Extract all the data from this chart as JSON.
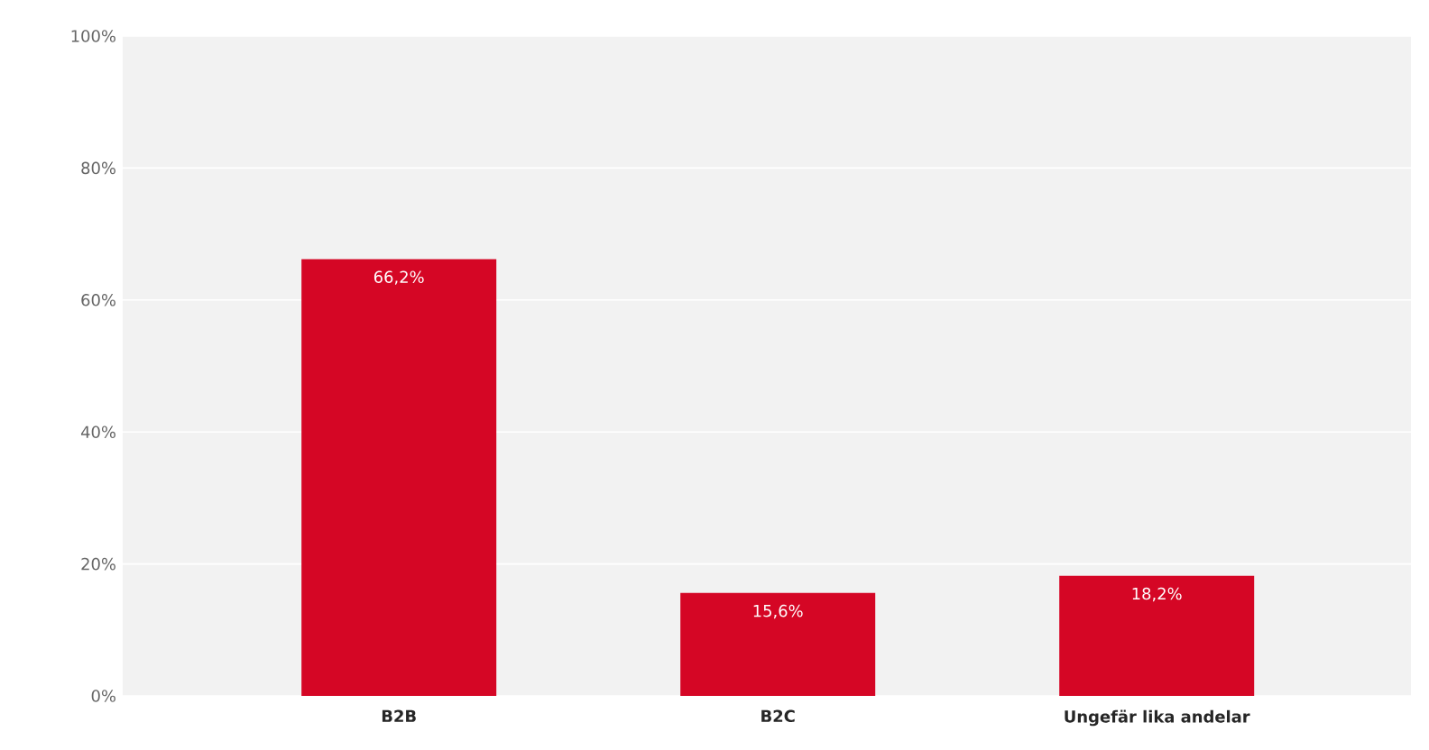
{
  "chart_data": {
    "type": "bar",
    "categories": [
      "B2B",
      "B2C",
      "Ungefär lika andelar"
    ],
    "values": [
      66.2,
      15.6,
      18.2
    ],
    "value_labels": [
      "66,2%",
      "15,6%",
      "18,2%"
    ],
    "color": "#d50625",
    "ylim": [
      0,
      100
    ],
    "yticks": [
      {
        "value": 0,
        "label": "0%"
      },
      {
        "value": 20,
        "label": "20%"
      },
      {
        "value": 40,
        "label": "40%"
      },
      {
        "value": 60,
        "label": "60%"
      },
      {
        "value": 80,
        "label": "80%"
      },
      {
        "value": 100,
        "label": "100%"
      }
    ],
    "grid": "y"
  }
}
